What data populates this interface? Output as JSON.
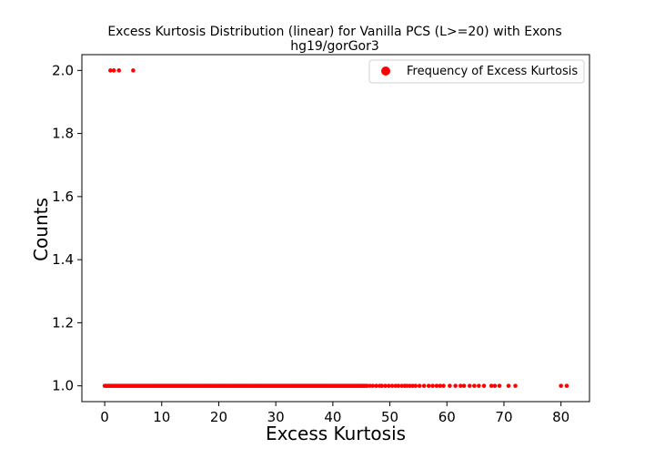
{
  "chart_data": {
    "type": "scatter",
    "title": "Excess Kurtosis Distribution (linear) for Vanilla PCS (L>=20) with Exons",
    "subtitle": "hg19/gorGor3",
    "xlabel": "Excess Kurtosis",
    "ylabel": "Counts",
    "xlim": [
      -4,
      85
    ],
    "ylim": [
      0.95,
      2.05
    ],
    "xticks": [
      "0",
      "10",
      "20",
      "30",
      "40",
      "50",
      "60",
      "70",
      "80"
    ],
    "yticks": [
      "1.0",
      "1.2",
      "1.4",
      "1.6",
      "1.8",
      "2.0"
    ],
    "grid": false,
    "legend_position": "top-right",
    "marker_color": "#ff0000",
    "series": [
      {
        "name": "Frequency of Excess Kurtosis",
        "points_count_2": [
          1.0,
          1.6,
          2.5,
          5.0
        ],
        "points_count_1_dense_range": [
          0.0,
          46.0
        ],
        "points_count_1_sparse": [
          46.5,
          47.0,
          47.6,
          48.2,
          48.6,
          49.2,
          49.8,
          50.4,
          51.0,
          51.5,
          52.1,
          52.6,
          53.0,
          53.5,
          54.0,
          54.5,
          55.2,
          56.0,
          56.8,
          57.5,
          58.2,
          58.8,
          59.4,
          60.5,
          61.5,
          62.4,
          63.0,
          64.0,
          64.8,
          65.6,
          66.5,
          67.8,
          68.4,
          69.2,
          70.8,
          72.0,
          80.0,
          81.0
        ]
      }
    ]
  }
}
